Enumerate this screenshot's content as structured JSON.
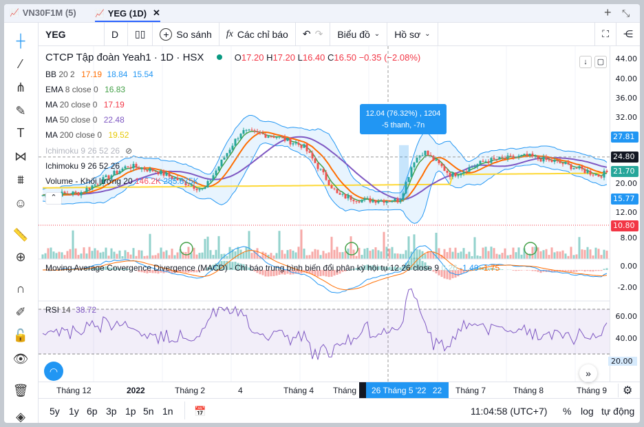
{
  "tabs": [
    {
      "label": "VN30F1M (5)",
      "active": false
    },
    {
      "label": "YEG (1D)",
      "active": true
    }
  ],
  "toolbar": {
    "symbol": "YEG",
    "interval": "D",
    "compare": "So sánh",
    "indicators": "Các chỉ báo",
    "chart_menu": "Biểu đồ",
    "profile": "Hồ sơ"
  },
  "header": {
    "title": "CTCP Tập đoàn Yeah1 · 1D · HSX",
    "o_label": "O",
    "o": "17.20",
    "h_label": "H",
    "h": "17.20",
    "l_label": "L",
    "l": "16.40",
    "c_label": "C",
    "c": "16.50",
    "change": "−0.35 (−2.08%)",
    "status_color": "#089981"
  },
  "legends": {
    "bb": {
      "name": "BB",
      "params": "20 2",
      "v1": "17.19",
      "v2": "18.84",
      "v3": "15.54"
    },
    "ema": {
      "name": "EMA",
      "params": "8 close 0",
      "v": "16.83"
    },
    "ma20": {
      "name": "MA",
      "params": "20 close 0",
      "v": "17.19"
    },
    "ma50": {
      "name": "MA",
      "params": "50 close 0",
      "v": "22.48"
    },
    "ma200": {
      "name": "MA",
      "params": "200 close 0",
      "v": "19.52"
    },
    "ichi_hidden": {
      "label": "Ichimoku 9 26 52 26"
    },
    "ichi": {
      "label": "Ichimoku 9 26 52 26"
    },
    "volume": {
      "label": "Volume - Khối lượng 20",
      "v1": "146.2K",
      "v2": "285.875K"
    },
    "macd": {
      "label": "Moving Average Covergence Divergence (MACD) - Chỉ báo trung bình biến đổi phân kỳ hội tụ 12 26 close 9",
      "v1": "0.26",
      "v2": "-1.49",
      "v3": "-1.75"
    },
    "rsi": {
      "name": "RSI",
      "params": "14",
      "v": "38.72"
    }
  },
  "tooltip": {
    "line1": "12.04 (76.32%) , 1204",
    "line2": "-5 thanh, -7n"
  },
  "price_axis": [
    "44.00",
    "40.00",
    "36.00",
    "32.00",
    "20.00",
    "12.00",
    "8.00"
  ],
  "macd_axis": [
    "0.00",
    "-2.00"
  ],
  "rsi_axis": [
    "60.00",
    "40.00",
    "20.00"
  ],
  "price_tags": [
    {
      "v": "27.81",
      "color": "#2196f3"
    },
    {
      "v": "24.80",
      "color": "#131722"
    },
    {
      "v": "21.70",
      "color": "#26a69a"
    },
    {
      "v": "15.77",
      "color": "#2196f3"
    },
    {
      "v": "10.80",
      "color": "#f23645"
    }
  ],
  "time_axis": [
    "Tháng 12",
    "2022",
    "Tháng 2",
    "4",
    "Tháng 4",
    "Tháng 7",
    "Tháng 8",
    "Tháng 9"
  ],
  "time_hidden": "Tháng",
  "time_cursor": "26 Tháng 5 '22",
  "time_cursor_tail": "22",
  "ranges": [
    "5y",
    "1y",
    "6p",
    "3p",
    "1p",
    "5n",
    "1n"
  ],
  "clock": "11:04:58 (UTC+7)",
  "scale": {
    "percent": "%",
    "log": "log",
    "auto": "tự động"
  },
  "colors": {
    "up": "#26a69a",
    "down": "#ef5350",
    "ema": "#43a047",
    "ma20": "#ff6d00",
    "ma50": "#7e57c2",
    "ma200": "#fdd835",
    "bb": "#2196f3",
    "rsi": "#7e57c2"
  }
}
